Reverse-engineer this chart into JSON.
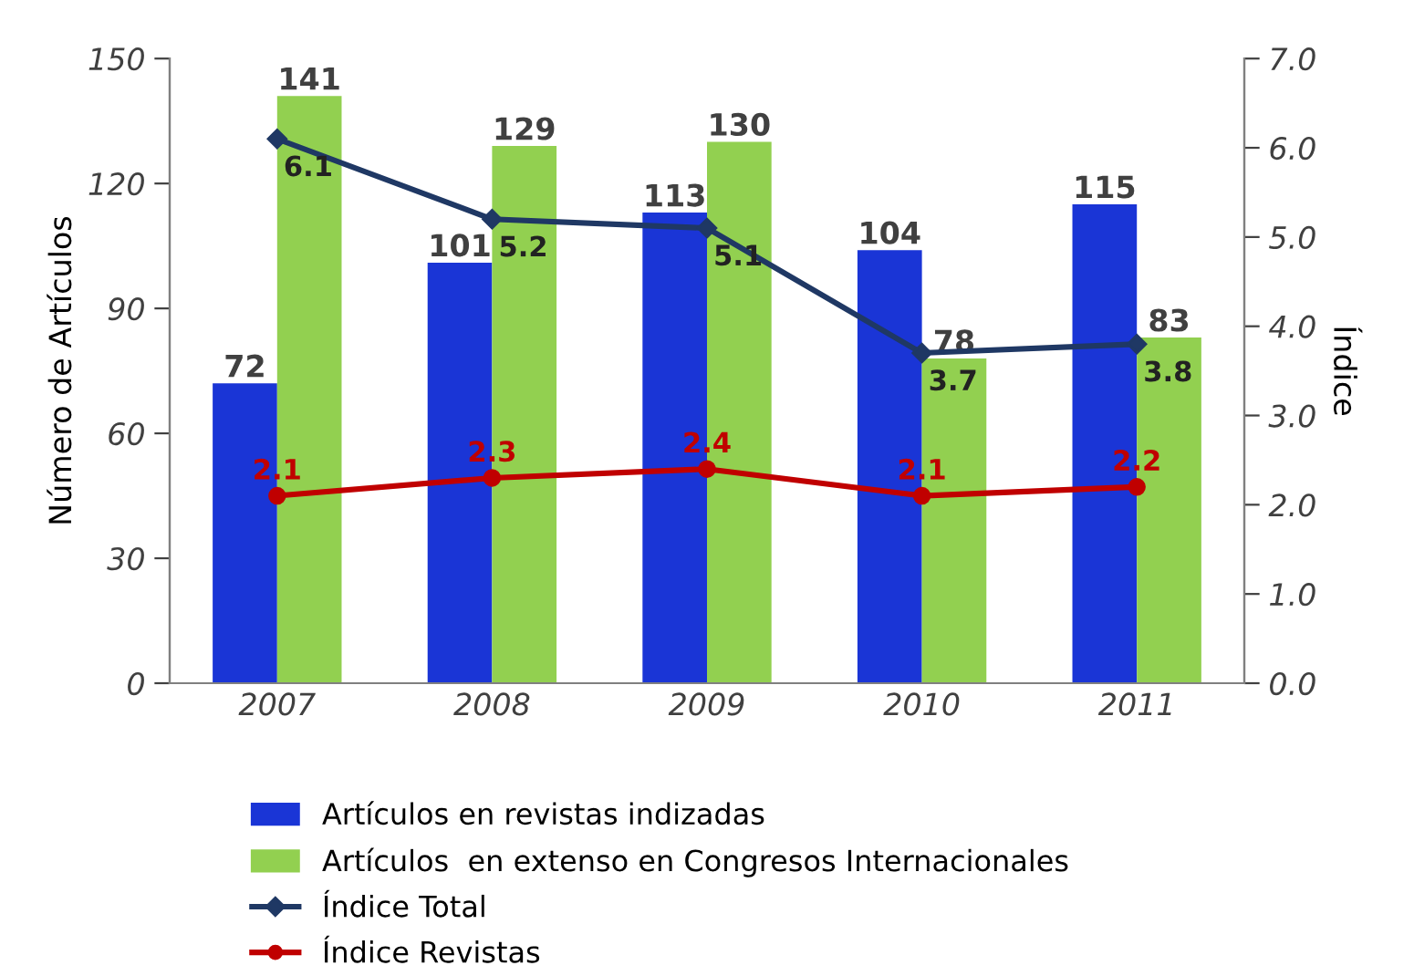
{
  "chart_data": {
    "type": "bar",
    "ylabel": "Número de Artículos",
    "y2label": "Índice",
    "categories": [
      "2007",
      "2008",
      "2009",
      "2010",
      "2011"
    ],
    "series": [
      {
        "name": "Artículos en revistas indizadas",
        "color": "#1a35d6",
        "values": [
          72,
          101,
          113,
          104,
          115
        ]
      },
      {
        "name": "Artículos  en extenso en Congresos Internacionales",
        "color": "#92d050",
        "values": [
          141,
          129,
          130,
          78,
          83
        ]
      },
      {
        "name": "Índice Total",
        "type": "line",
        "axis": "y2",
        "color": "#1f3864",
        "marker": "diamond",
        "values": [
          6.1,
          5.2,
          5.1,
          3.7,
          3.8
        ]
      },
      {
        "name": "Índice Revistas",
        "type": "line",
        "axis": "y2",
        "color": "#c00000",
        "marker": "circle",
        "values": [
          2.1,
          2.3,
          2.4,
          2.1,
          2.2
        ]
      }
    ],
    "ylim": [
      0,
      150
    ],
    "yticks": [
      0,
      30,
      60,
      90,
      120,
      150
    ],
    "y2lim": [
      0,
      7
    ],
    "y2ticks": [
      {
        "value": 0,
        "label": "0.0"
      },
      {
        "value": 1,
        "label": "1.0"
      },
      {
        "value": 2,
        "label": "2.0"
      },
      {
        "value": 3,
        "label": "3.0"
      },
      {
        "value": 4,
        "label": "4.0"
      },
      {
        "value": 5,
        "label": "5.0"
      },
      {
        "value": 6,
        "label": "6.0"
      },
      {
        "value": 7,
        "label": "7.0"
      }
    ],
    "data_labels": true,
    "grid": false,
    "legend": "bottom"
  }
}
